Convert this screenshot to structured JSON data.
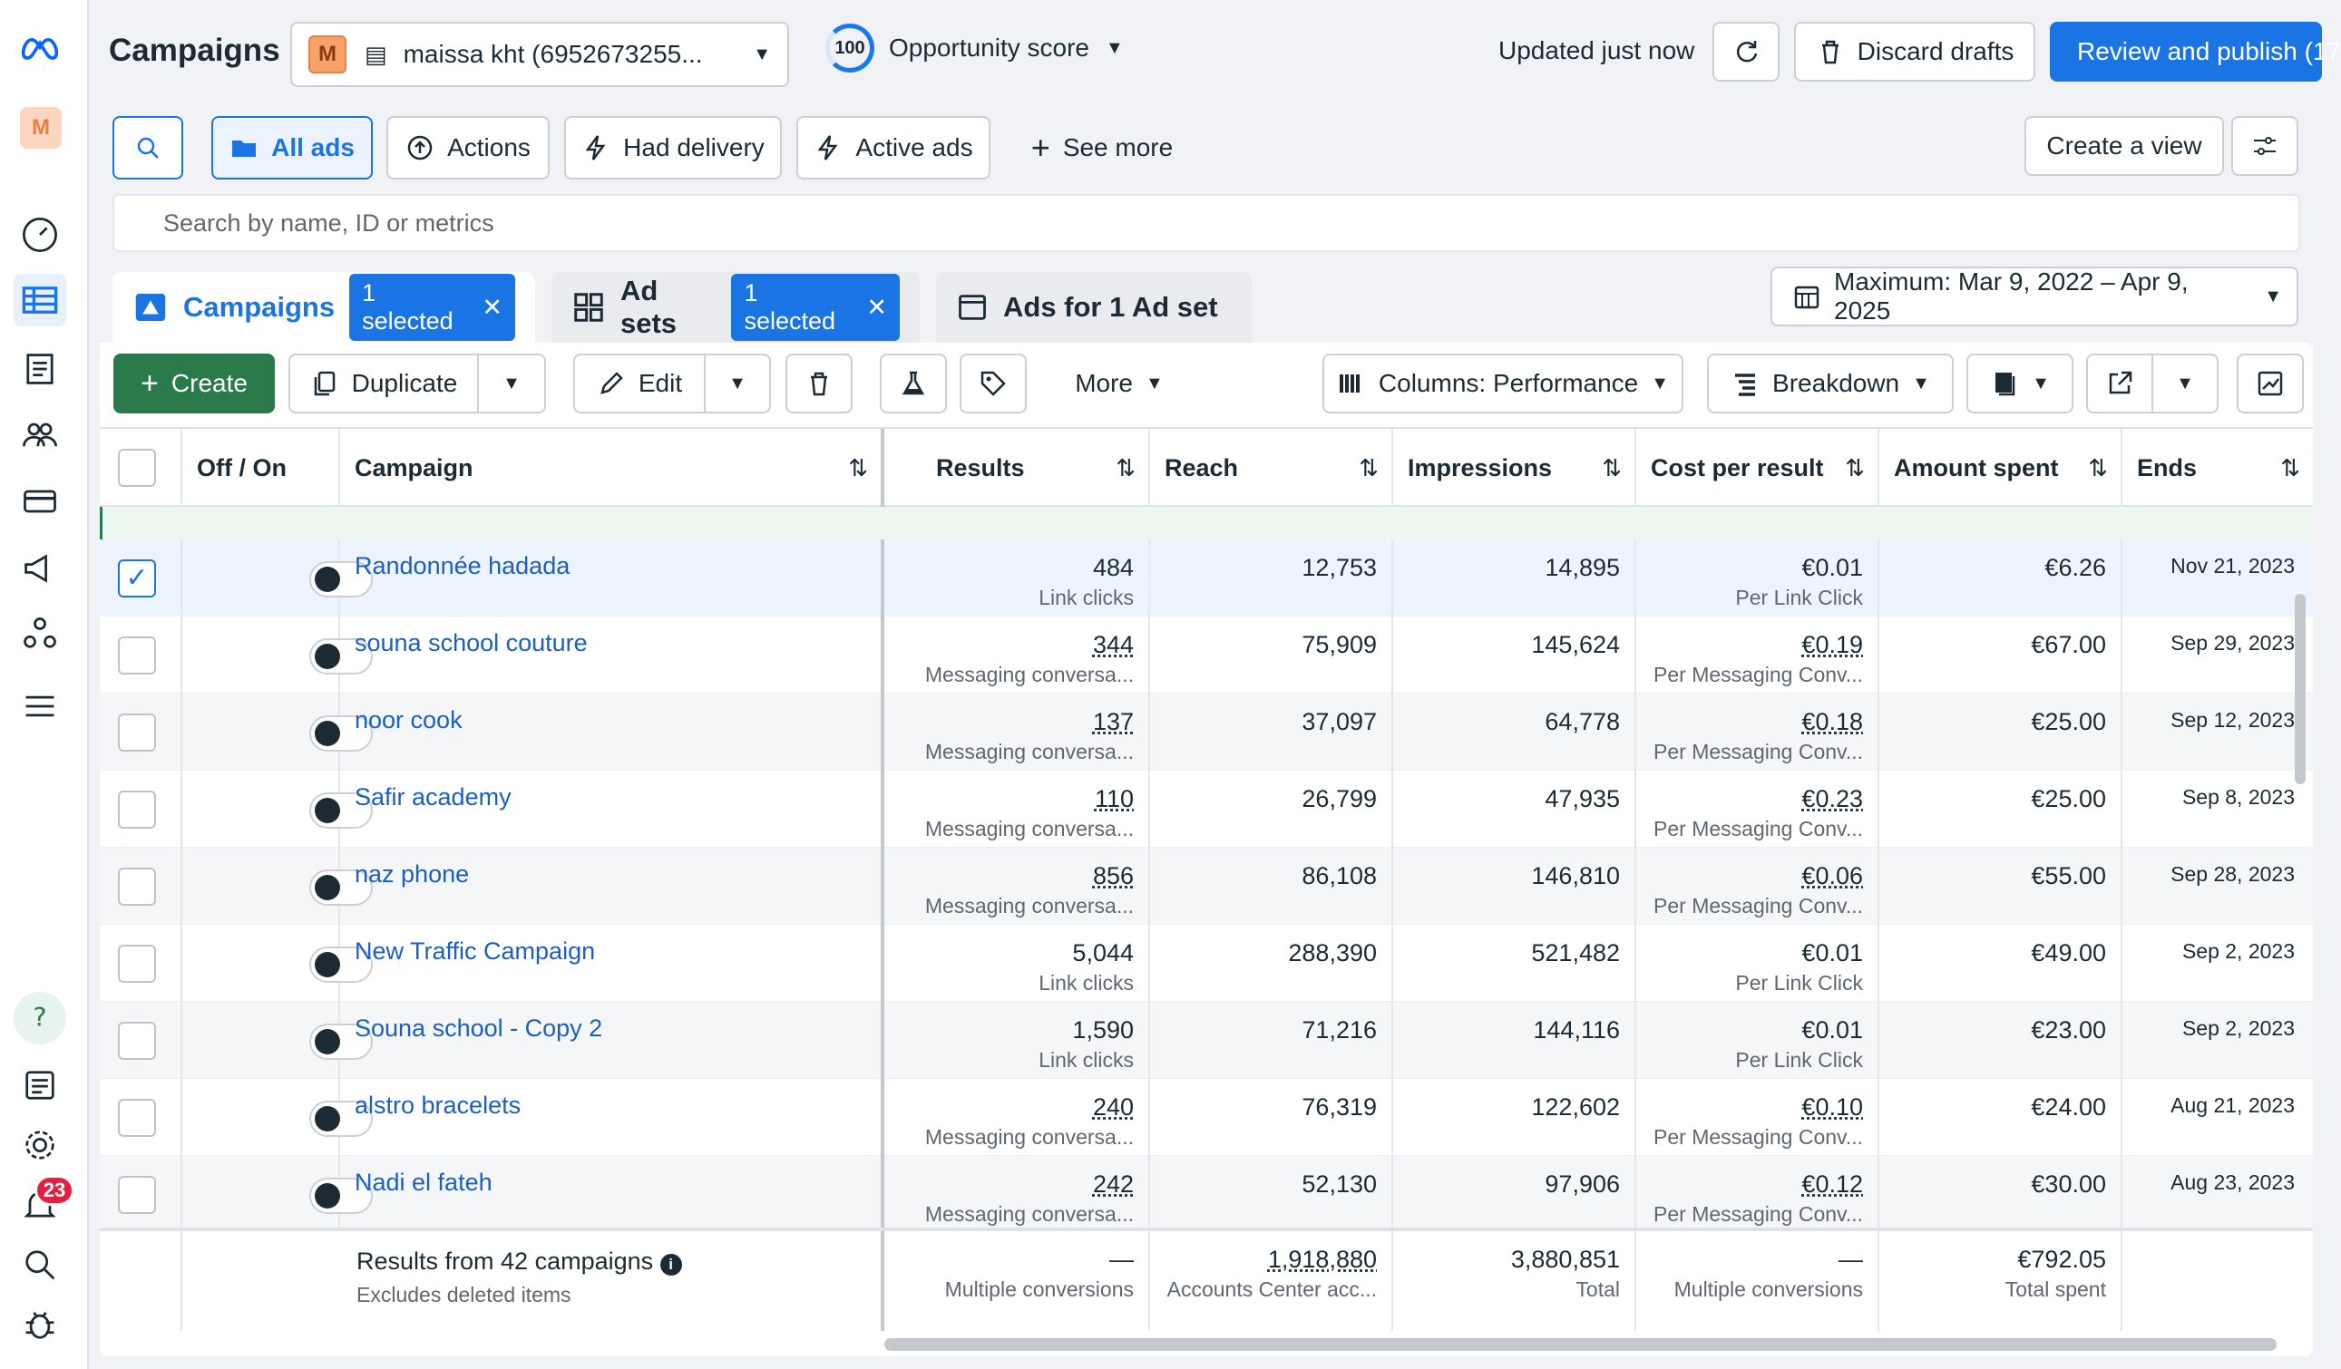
{
  "app": {
    "title": "Campaigns",
    "account": "maissa kht (6952673255...",
    "account_initial": "M",
    "opportunity_score": "100",
    "opportunity_label": "Opportunity score",
    "updated": "Updated just now",
    "discard": "Discard drafts",
    "review": "Review and publish (17"
  },
  "rail": {
    "notifications": "23",
    "avatar": "M"
  },
  "filters": {
    "all_ads": "All ads",
    "actions": "Actions",
    "had_delivery": "Had delivery",
    "active_ads": "Active ads",
    "see_more": "See more",
    "create_view": "Create a view"
  },
  "search": {
    "placeholder": "Search by name, ID or metrics"
  },
  "tabs": {
    "campaigns": "Campaigns",
    "campaigns_sel": "1 selected",
    "adsets": "Ad sets",
    "adsets_sel": "1 selected",
    "ads": "Ads for 1 Ad set"
  },
  "date_range": "Maximum: Mar 9, 2022 – Apr 9, 2025",
  "toolbar": {
    "create": "Create",
    "duplicate": "Duplicate",
    "edit": "Edit",
    "more": "More",
    "columns": "Columns: Performance",
    "breakdown": "Breakdown"
  },
  "columns": {
    "onoff": "Off / On",
    "campaign": "Campaign",
    "results": "Results",
    "reach": "Reach",
    "impressions": "Impressions",
    "cpr": "Cost per result",
    "spent": "Amount spent",
    "ends": "Ends"
  },
  "rows": [
    {
      "name": "Randonnée hadada",
      "results": "484",
      "results_sub": "Link clicks",
      "reach": "12,753",
      "impr": "14,895",
      "cpr": "€0.01",
      "cpr_sub": "Per Link Click",
      "spent": "€6.26",
      "ends": "Nov 21, 2023"
    },
    {
      "name": "souna school couture",
      "results": "344",
      "results_sub": "Messaging conversa...",
      "reach": "75,909",
      "impr": "145,624",
      "cpr": "€0.19",
      "cpr_sub": "Per Messaging Conv...",
      "spent": "€67.00",
      "ends": "Sep 29, 2023"
    },
    {
      "name": "noor cook",
      "results": "137",
      "results_sub": "Messaging conversa...",
      "reach": "37,097",
      "impr": "64,778",
      "cpr": "€0.18",
      "cpr_sub": "Per Messaging Conv...",
      "spent": "€25.00",
      "ends": "Sep 12, 2023"
    },
    {
      "name": "Safir academy",
      "results": "110",
      "results_sub": "Messaging conversa...",
      "reach": "26,799",
      "impr": "47,935",
      "cpr": "€0.23",
      "cpr_sub": "Per Messaging Conv...",
      "spent": "€25.00",
      "ends": "Sep 8, 2023"
    },
    {
      "name": "naz phone",
      "results": "856",
      "results_sub": "Messaging conversa...",
      "reach": "86,108",
      "impr": "146,810",
      "cpr": "€0.06",
      "cpr_sub": "Per Messaging Conv...",
      "spent": "€55.00",
      "ends": "Sep 28, 2023"
    },
    {
      "name": "New Traffic Campaign",
      "results": "5,044",
      "results_sub": "Link clicks",
      "reach": "288,390",
      "impr": "521,482",
      "cpr": "€0.01",
      "cpr_sub": "Per Link Click",
      "spent": "€49.00",
      "ends": "Sep 2, 2023"
    },
    {
      "name": "Souna school - Copy 2",
      "results": "1,590",
      "results_sub": "Link clicks",
      "reach": "71,216",
      "impr": "144,116",
      "cpr": "€0.01",
      "cpr_sub": "Per Link Click",
      "spent": "€23.00",
      "ends": "Sep 2, 2023"
    },
    {
      "name": "alstro bracelets",
      "results": "240",
      "results_sub": "Messaging conversa...",
      "reach": "76,319",
      "impr": "122,602",
      "cpr": "€0.10",
      "cpr_sub": "Per Messaging Conv...",
      "spent": "€24.00",
      "ends": "Aug 21, 2023"
    },
    {
      "name": "Nadi el fateh",
      "results": "242",
      "results_sub": "Messaging conversa...",
      "reach": "52,130",
      "impr": "97,906",
      "cpr": "€0.12",
      "cpr_sub": "Per Messaging Conv...",
      "spent": "€30.00",
      "ends": "Aug 23, 2023"
    }
  ],
  "footer": {
    "label": "Results from 42 campaigns",
    "sub": "Excludes deleted items",
    "results": "—",
    "results_sub": "Multiple conversions",
    "reach": "1,918,880",
    "reach_sub": "Accounts Center acc...",
    "impr": "3,880,851",
    "impr_sub": "Total",
    "cpr": "—",
    "cpr_sub": "Multiple conversions",
    "spent": "€792.05",
    "spent_sub": "Total spent"
  }
}
